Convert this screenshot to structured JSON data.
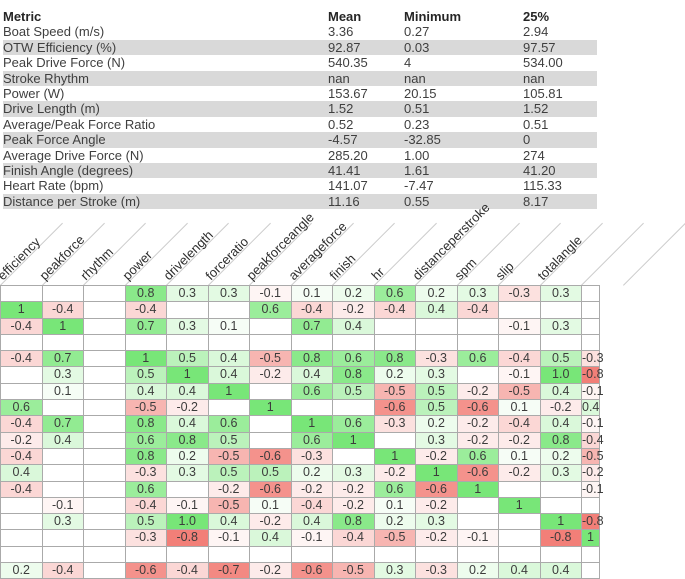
{
  "summary_table": {
    "columns": [
      "Metric",
      "Mean",
      "Minimum",
      "25%"
    ],
    "rows": [
      [
        "Boat Speed (m/s)",
        "3.36",
        "0.27",
        "2.94"
      ],
      [
        "OTW Efficiency (%)",
        "92.87",
        "0.03",
        "97.57"
      ],
      [
        "Peak Drive Force (N)",
        "540.35",
        "4",
        "534.00"
      ],
      [
        "Stroke Rhythm",
        "nan",
        "nan",
        "nan"
      ],
      [
        "Power (W)",
        "153.67",
        "20.15",
        "105.81"
      ],
      [
        "Drive Length (m)",
        "1.52",
        "0.51",
        "1.52"
      ],
      [
        "Average/Peak Force Ratio",
        "0.52",
        "0.23",
        "0.51"
      ],
      [
        "Peak Force Angle",
        "-4.57",
        "-32.85",
        "0"
      ],
      [
        "Average Drive Force (N)",
        "285.20",
        "1.00",
        "274"
      ],
      [
        "Finish Angle (degrees)",
        "41.41",
        "1.61",
        "41.20"
      ],
      [
        "Heart Rate (bpm)",
        "141.07",
        "-7.47",
        "115.33"
      ],
      [
        "Distance per Stroke (m)",
        "11.16",
        "0.55",
        "8.17"
      ]
    ],
    "row_stripe_color": "#d9d9d9"
  },
  "chart_data": {
    "type": "heatmap",
    "title": "",
    "legend_position": "none",
    "grid": true,
    "columns": [
      "efficiency",
      "peakforce",
      "rhythm",
      "power",
      "drivelength",
      "forceratio",
      "peakforceangle",
      "averageforce",
      "finish",
      "hr",
      "distanceperstroke",
      "spm",
      "slip",
      "totalangle",
      ""
    ],
    "values": [
      [
        "",
        "",
        "",
        "0.8",
        "0.3",
        "0.3",
        "-0.1",
        "0.1",
        "0.2",
        "0.6",
        "0.2",
        "0.3",
        "-0.3",
        "0.3",
        ""
      ],
      [
        "1",
        "-0.4",
        "",
        "-0.4",
        "",
        "",
        "0.6",
        "-0.4",
        "-0.2",
        "-0.4",
        "0.4",
        "-0.4",
        "",
        "",
        ""
      ],
      [
        "-0.4",
        "1",
        "",
        "0.7",
        "0.3",
        "0.1",
        "",
        "0.7",
        "0.4",
        "",
        "",
        "",
        "-0.1",
        "0.3",
        ""
      ],
      [
        "",
        "",
        "",
        "",
        "",
        "",
        "",
        "",
        "",
        "",
        "",
        "",
        "",
        "",
        ""
      ],
      [
        "-0.4",
        "0.7",
        "",
        "1",
        "0.5",
        "0.4",
        "-0.5",
        "0.8",
        "0.6",
        "0.8",
        "-0.3",
        "0.6",
        "-0.4",
        "0.5",
        "-0.3"
      ],
      [
        "",
        "0.3",
        "",
        "0.5",
        "1",
        "0.4",
        "-0.2",
        "0.4",
        "0.8",
        "0.2",
        "0.3",
        "",
        "-0.1",
        "1.0",
        "-0.8"
      ],
      [
        "",
        "0.1",
        "",
        "0.4",
        "0.4",
        "1",
        "",
        "0.6",
        "0.5",
        "-0.5",
        "0.5",
        "-0.2",
        "-0.5",
        "0.4",
        "-0.1"
      ],
      [
        "0.6",
        "",
        "",
        "-0.5",
        "-0.2",
        "",
        "1",
        "",
        "",
        "-0.6",
        "0.5",
        "-0.6",
        "0.1",
        "-0.2",
        "0.4"
      ],
      [
        "-0.4",
        "0.7",
        "",
        "0.8",
        "0.4",
        "0.6",
        "",
        "1",
        "0.6",
        "-0.3",
        "0.2",
        "-0.2",
        "-0.4",
        "0.4",
        "-0.1"
      ],
      [
        "-0.2",
        "0.4",
        "",
        "0.6",
        "0.8",
        "0.5",
        "",
        "0.6",
        "1",
        "",
        "0.3",
        "-0.2",
        "-0.2",
        "0.8",
        "-0.4"
      ],
      [
        "-0.4",
        "",
        "",
        "0.8",
        "0.2",
        "-0.5",
        "-0.6",
        "-0.3",
        "",
        "1",
        "-0.2",
        "0.6",
        "0.1",
        "0.2",
        "-0.5"
      ],
      [
        "0.4",
        "",
        "",
        "-0.3",
        "0.3",
        "0.5",
        "0.5",
        "0.2",
        "0.3",
        "-0.2",
        "1",
        "-0.6",
        "-0.2",
        "0.3",
        "-0.2"
      ],
      [
        "-0.4",
        "",
        "",
        "0.6",
        "",
        "-0.2",
        "-0.6",
        "-0.2",
        "-0.2",
        "0.6",
        "-0.6",
        "1",
        "",
        "",
        "-0.1"
      ],
      [
        "",
        "-0.1",
        "",
        "-0.4",
        "-0.1",
        "-0.5",
        "0.1",
        "-0.4",
        "-0.2",
        "0.1",
        "-0.2",
        "",
        "1",
        "",
        ""
      ],
      [
        "",
        "0.3",
        "",
        "0.5",
        "1.0",
        "0.4",
        "-0.2",
        "0.4",
        "0.8",
        "0.2",
        "0.3",
        "",
        "",
        "1",
        "-0.8"
      ],
      [
        "",
        "",
        "",
        "-0.3",
        "-0.8",
        "-0.1",
        "0.4",
        "-0.1",
        "-0.4",
        "-0.5",
        "-0.2",
        "-0.1",
        "",
        "-0.8",
        "1"
      ],
      [
        "",
        "",
        "",
        "",
        "",
        "",
        "",
        "",
        "",
        "",
        "",
        "",
        "",
        "",
        ""
      ],
      [
        "0.2",
        "-0.4",
        "",
        "-0.6",
        "-0.4",
        "-0.7",
        "-0.2",
        "-0.6",
        "-0.5",
        "0.3",
        "-0.3",
        "0.2",
        "0.4",
        "0.4",
        ""
      ]
    ],
    "colors": {
      "positive_full": "#78e678",
      "negative_full": "#f06c64",
      "blank_cell": "#ffffff",
      "gridline": "#aaaaaa",
      "tick_line": "#cccccc"
    }
  }
}
